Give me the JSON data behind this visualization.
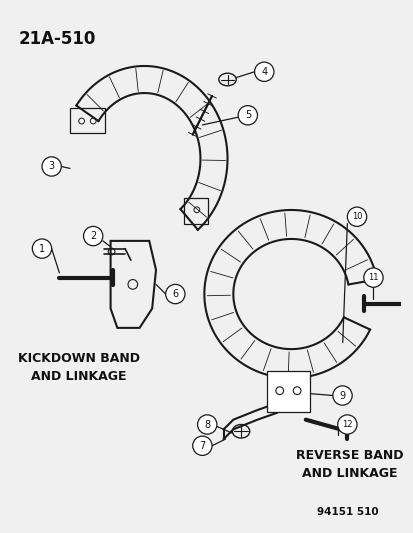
{
  "title_code": "21A-510",
  "footer": "94151 510",
  "bg_color": "#f5f5f5",
  "line_color": "#1a1a1a",
  "label_color": "#111111",
  "kickdown_label": "KICKDOWN BAND\nAND LINKAGE",
  "reverse_label": "REVERSE BAND\nAND LINKAGE"
}
